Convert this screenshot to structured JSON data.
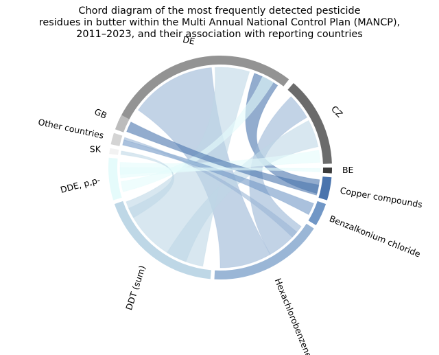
{
  "title": {
    "line1": "Chord diagram of the most frequently detected pesticide",
    "line2": "residues in butter within the Multi Annual National Control Plan (MANCP),",
    "line3": "2011–2023, and their association with reporting countries"
  },
  "chart_data": {
    "type": "chord",
    "nodes": [
      {
        "label": "DE",
        "color": "#939393"
      },
      {
        "label": "CZ",
        "color": "#6b6b6b"
      },
      {
        "label": "BE",
        "color": "#3b3b3b"
      },
      {
        "label": "Copper compounds",
        "color": "#4a74ad"
      },
      {
        "label": "Benzalkonium chloride",
        "color": "#7197c6"
      },
      {
        "label": "Hexachlorobenzene",
        "color": "#9ab6d6"
      },
      {
        "label": "DDT (sum)",
        "color": "#bed7e6"
      },
      {
        "label": "DDE, p,p-",
        "color": "#e5fbfb"
      },
      {
        "label": "SK",
        "color": "#f2f2f2"
      },
      {
        "label": "Other countries",
        "color": "#d4d4d4"
      },
      {
        "label": "GB",
        "color": "#bcbcbc"
      }
    ]
  }
}
